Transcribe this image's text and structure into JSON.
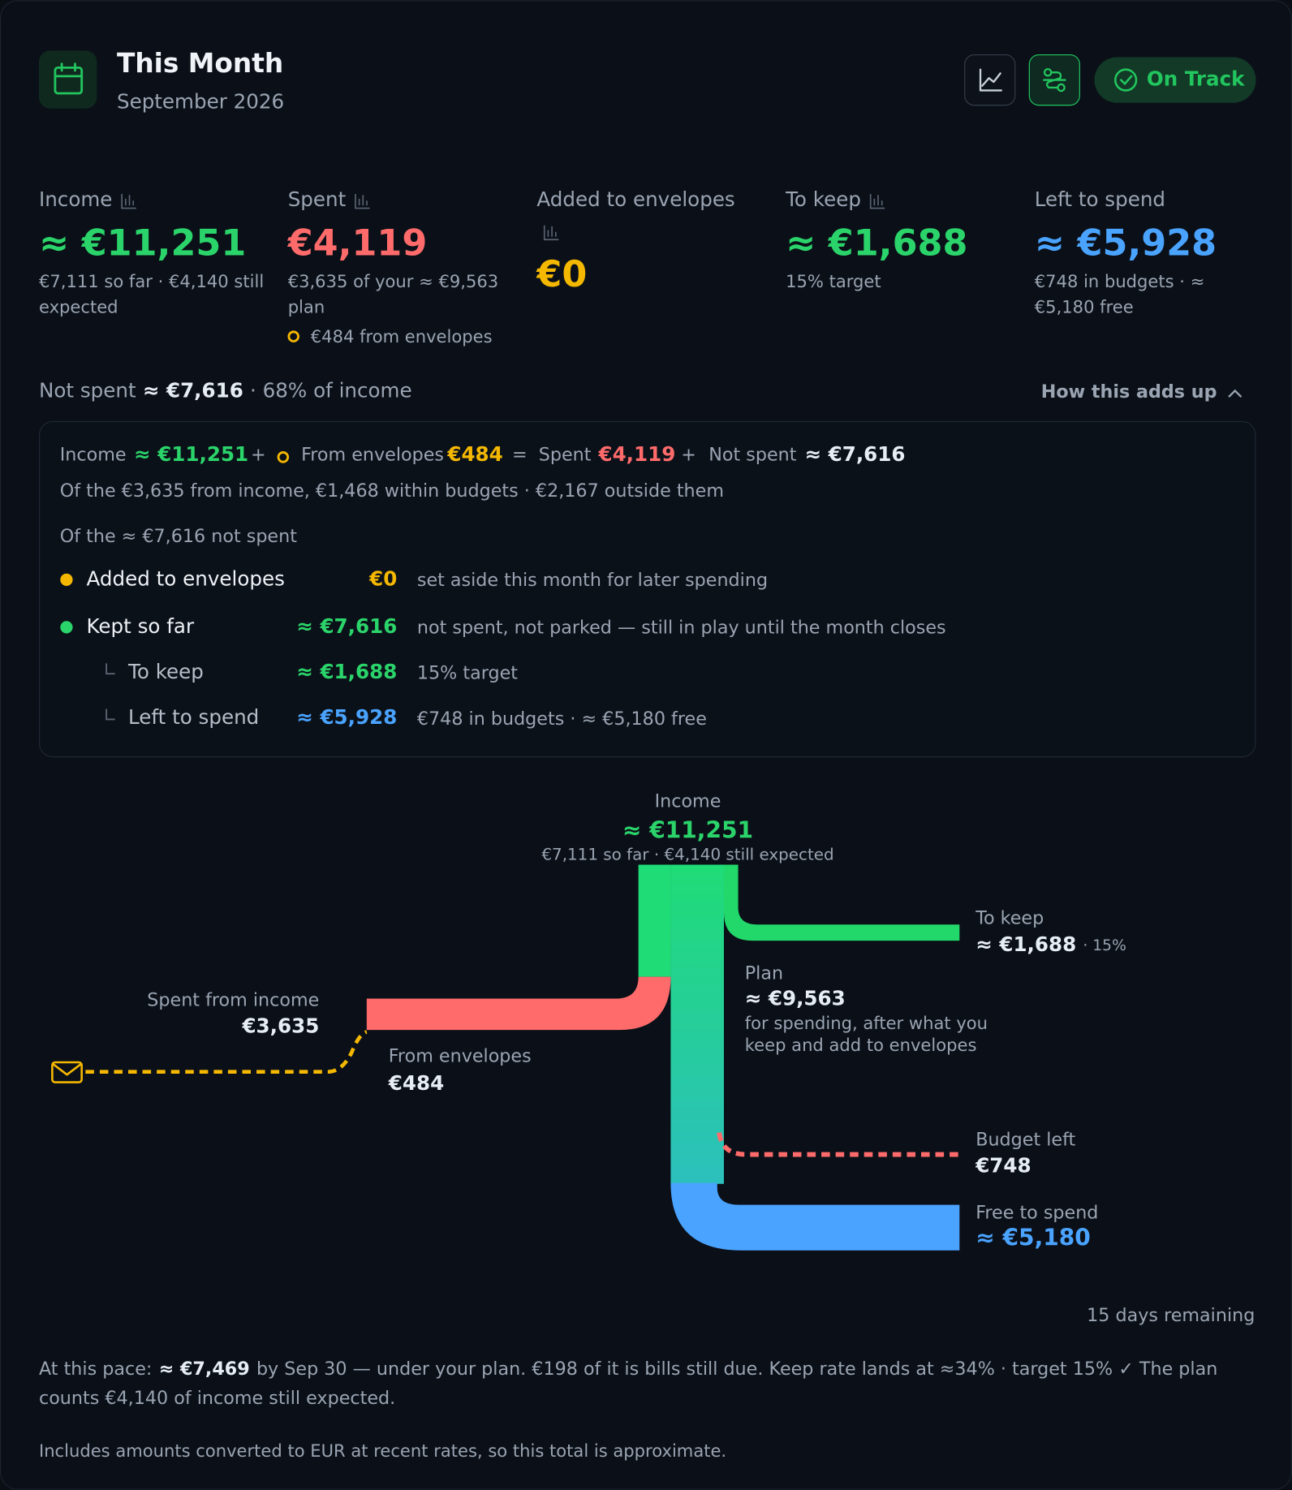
{
  "header": {
    "title": "This Month",
    "subtitle": "September 2026",
    "status": "On Track"
  },
  "stats": [
    {
      "label": "Income",
      "value": "≈ €11,251",
      "color": "#2bd46a",
      "note_lines": [
        "€7,111 so far · €4,140 still",
        "expected"
      ]
    },
    {
      "label": "Spent",
      "value": "€4,119",
      "color": "#ff6b6b",
      "note_lines": [
        "€3,635 of your ≈ €9,563",
        "plan"
      ],
      "extra": "€484 from envelopes"
    },
    {
      "label": "Added to envelopes",
      "value": "€0",
      "color": "#f5b800"
    },
    {
      "label": "To keep",
      "value": "≈ €1,688",
      "color": "#2bd46a",
      "note_lines": [
        "15% target"
      ]
    },
    {
      "label": "Left to spend",
      "value": "≈ €5,928",
      "color": "#4aa3ff",
      "note_lines": [
        "€748 in budgets · ≈",
        "€5,180 free"
      ]
    }
  ],
  "summary": {
    "prefix": "Not spent",
    "amount": "≈ €7,616",
    "suffix": "· 68% of income",
    "toggle": "How this adds up"
  },
  "breakdown": {
    "equation": [
      {
        "text": "Income",
        "color": "#9aa4b2"
      },
      {
        "text": "≈ €11,251",
        "color": "#2bd46a"
      },
      {
        "text": "+",
        "color": "#9aa4b2"
      },
      {
        "text": "From envelopes",
        "color": "#9aa4b2"
      },
      {
        "text": "€484",
        "color": "#f5b800"
      },
      {
        "text": "=",
        "color": "#9aa4b2"
      },
      {
        "text": "Spent",
        "color": "#9aa4b2"
      },
      {
        "text": "€4,119",
        "color": "#ff6b6b"
      },
      {
        "text": "+",
        "color": "#9aa4b2"
      },
      {
        "text": "Not spent",
        "color": "#9aa4b2"
      },
      {
        "text": "≈ €7,616",
        "color": "#e6edf3"
      }
    ],
    "detail": "Of the €3,635 from income, €1,468 within budgets · €2,167 outside them",
    "heading": "Of the ≈ €7,616 not spent",
    "rows": [
      {
        "label": "Added to envelopes",
        "amount": "€0",
        "note": "set aside this month for later spending",
        "color": "#f5b800"
      },
      {
        "label": "Kept so far",
        "amount": "≈ €7,616",
        "note": "not spent, not parked — still in play until the month closes",
        "color": "#2bd46a"
      },
      {
        "label": "To keep",
        "amount": "≈ €1,688",
        "note": "15% target",
        "color": "#2bd46a"
      },
      {
        "label": "Left to spend",
        "amount": "≈ €5,928",
        "note": "€748 in budgets · ≈ €5,180 free",
        "color": "#4aa3ff"
      }
    ]
  },
  "flow": {
    "income": {
      "label": "Income",
      "amount": "≈ €11,251",
      "note": "€7,111 so far · €4,140 still expected"
    },
    "keep": {
      "label": "To keep",
      "amount": "≈ €1,688",
      "note": "· 15%"
    },
    "plan": {
      "label": "Plan",
      "amount": "≈ €9,563",
      "note_lines": [
        "for spending, after what you",
        "keep and add to envelopes"
      ]
    },
    "spent": {
      "label": "Spent from income",
      "amount": "€3,635"
    },
    "envelopes": {
      "label": "From envelopes",
      "amount": "€484"
    },
    "budget": {
      "label": "Budget left",
      "amount": "€748"
    },
    "free": {
      "label": "Free to spend",
      "amount": "≈ €5,180"
    }
  },
  "footer": {
    "remaining": "15 days remaining",
    "pace_prefix": "At this pace:",
    "pace_amount": "≈ €7,469",
    "pace_rest": "by Sep 30 — under your plan. €198 of it is bills still due. Keep rate lands at ≈34% · target 15% ✓ The plan",
    "pace_line2": "counts €4,140 of income still expected.",
    "disclaimer": "Includes amounts converted to EUR at recent rates, so this total is approximate."
  }
}
